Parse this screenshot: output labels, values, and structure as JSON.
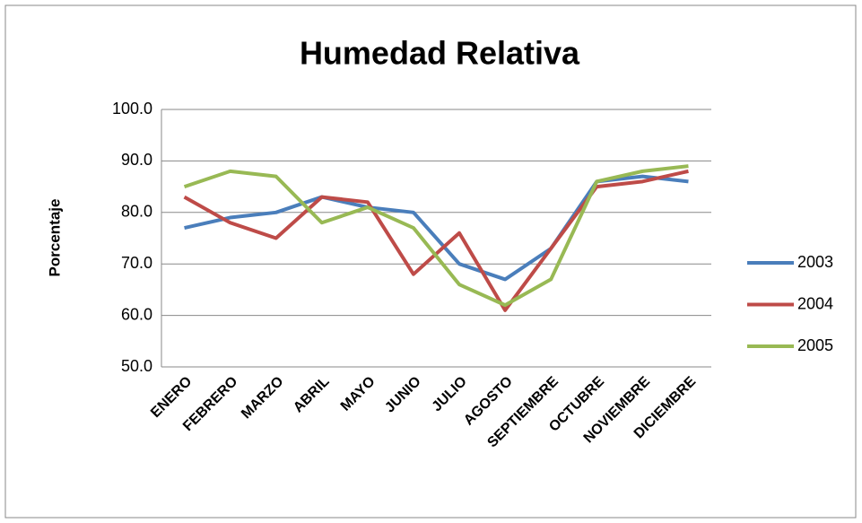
{
  "chart_data": {
    "type": "line",
    "title": "Humedad Relativa",
    "y_label": "Porcentaje",
    "categories": [
      "ENERO",
      "FEBRERO",
      "MARZO",
      "ABRIL",
      "MAYO",
      "JUNIO",
      "JULIO",
      "AGOSTO",
      "SEPTIEMBRE",
      "OCTUBRE",
      "NOVIEMBRE",
      "DICIEMBRE"
    ],
    "series": [
      {
        "name": "2003",
        "color": "#4a7ebb",
        "values": [
          77,
          79,
          80,
          83,
          81,
          80,
          70,
          67,
          73,
          86,
          87,
          86
        ]
      },
      {
        "name": "2004",
        "color": "#be4b48",
        "values": [
          83,
          78,
          75,
          83,
          82,
          68,
          76,
          61,
          73,
          85,
          86,
          88
        ]
      },
      {
        "name": "2005",
        "color": "#98b954",
        "values": [
          85,
          88,
          87,
          78,
          81,
          77,
          66,
          62,
          67,
          86,
          88,
          89
        ]
      }
    ],
    "ylim": [
      50,
      100
    ],
    "yticks": [
      {
        "value": 50,
        "label": "50.0"
      },
      {
        "value": 60,
        "label": "60.0"
      },
      {
        "value": 70,
        "label": "70.0"
      },
      {
        "value": 80,
        "label": "80.0"
      },
      {
        "value": 90,
        "label": "90.0"
      },
      {
        "value": 100,
        "label": "100.0"
      }
    ],
    "grid": true,
    "legend": "right"
  }
}
